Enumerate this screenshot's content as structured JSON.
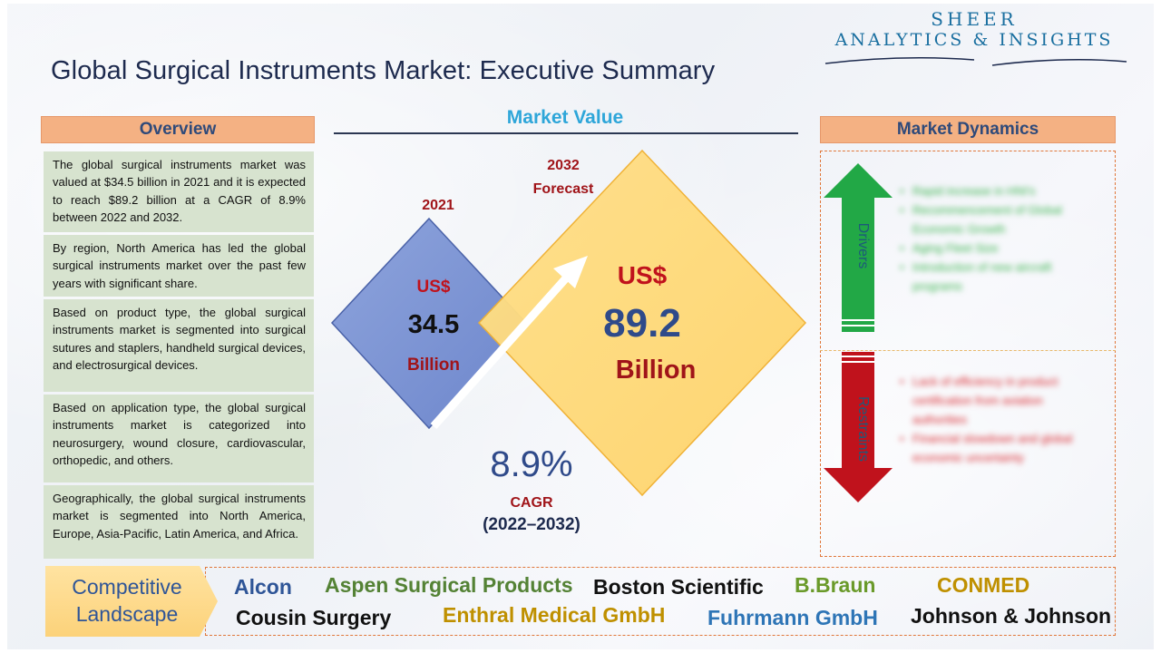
{
  "title": "Global Surgical Instruments Market: Executive Summary",
  "logo": {
    "line1": "SHEER",
    "line2": "ANALYTICS & INSIGHTS"
  },
  "overview": {
    "header": "Overview",
    "items": [
      "The global surgical instruments market was valued at $34.5 billion in 2021 and it is expected to reach $89.2 billion at a CAGR of 8.9% between 2022 and 2032.",
      "By region, North America has led the global surgical instruments market over the past few years with significant share.",
      "Based on product type, the global surgical instruments market is segmented into surgical sutures and staplers, handheld surgical devices, and electrosurgical devices.",
      "Based on application type, the global surgical instruments market is categorized into neurosurgery, wound closure, cardiovascular, orthopedic, and others.",
      "Geographically, the global surgical instruments market is segmented into North America, Europe, Asia-Pacific, Latin America, and Africa."
    ]
  },
  "market_value": {
    "header": "Market Value",
    "left": {
      "year": "2021",
      "currency": "US$",
      "value": "34.5",
      "unit": "Billion"
    },
    "right": {
      "year": "2032",
      "year_sub": "Forecast",
      "currency": "US$",
      "value": "89.2",
      "unit": "Billion"
    },
    "cagr": {
      "value": "8.9%",
      "label": "CAGR",
      "period": "(2022–2032)"
    }
  },
  "market_dynamics": {
    "header": "Market Dynamics",
    "drivers_label": "Drivers",
    "restraints_label": "Restraints",
    "drivers": [
      "Rapid increase in HNI's",
      "Recommencement of Global Economic Growth",
      "Aging Fleet Size",
      "Introduction of new aircraft programs"
    ],
    "restraints": [
      "Lack of efficiency in product certification from aviation authorities",
      "Financial slowdown and global economic uncertainty"
    ],
    "colors": {
      "drivers": "#22a846",
      "restraints": "#c0121c"
    }
  },
  "competitive": {
    "label_line1": "Competitive",
    "label_line2": "Landscape",
    "companies": [
      {
        "name": "Alcon",
        "color": "#2f5597"
      },
      {
        "name": "Aspen Surgical Products",
        "color": "#548235"
      },
      {
        "name": "Boston Scientific",
        "color": "#111111"
      },
      {
        "name": "B.Braun",
        "color": "#6a9a2a"
      },
      {
        "name": "CONMED",
        "color": "#bf9000"
      },
      {
        "name": "Cousin Surgery",
        "color": "#111111"
      },
      {
        "name": "Enthral Medical GmbH",
        "color": "#bf9000"
      },
      {
        "name": "Fuhrmann GmbH",
        "color": "#2e75b6"
      },
      {
        "name": "Johnson & Johnson",
        "color": "#111111"
      }
    ]
  }
}
